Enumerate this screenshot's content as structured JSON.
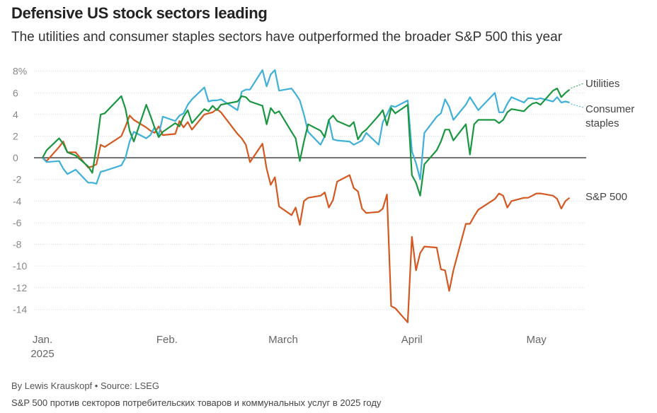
{
  "header": {
    "title": "Defensive US stock sectors leading",
    "subtitle": "The utilities and consumer staples sectors have outperformed the broader S&P 500 this year"
  },
  "footer": {
    "credit": "By Lewis Krauskopf • Source: LSEG",
    "note": "S&P 500 против секторов потребительских товаров и коммунальных услуг в 2025 году"
  },
  "colors": {
    "utilities": "#1a9641",
    "consumer_staples": "#3fb0d9",
    "sp500": "#d4581f",
    "zero_line": "#333333",
    "grid": "#d9d9d9"
  },
  "chart_data": {
    "type": "line",
    "title": "Defensive US stock sectors leading",
    "ylabel": "",
    "xlabel": "",
    "ylim": [
      -16,
      8.5
    ],
    "yticks": [
      {
        "value": 8,
        "label": "8%"
      },
      {
        "value": 6,
        "label": "6"
      },
      {
        "value": 4,
        "label": "4"
      },
      {
        "value": 2,
        "label": "2"
      },
      {
        "value": 0,
        "label": "0"
      },
      {
        "value": -2,
        "label": "-2"
      },
      {
        "value": -4,
        "label": "-4"
      },
      {
        "value": -6,
        "label": "-6"
      },
      {
        "value": -8,
        "label": "-8"
      },
      {
        "value": -10,
        "label": "-10"
      },
      {
        "value": -12,
        "label": "-12"
      },
      {
        "value": -14,
        "label": "-14"
      }
    ],
    "xticks": [
      {
        "date": "2025-01-02",
        "label": "Jan.",
        "sublabel": "2025"
      },
      {
        "date": "2025-02-01",
        "label": "Feb.",
        "sublabel": ""
      },
      {
        "date": "2025-03-01",
        "label": "March",
        "sublabel": ""
      },
      {
        "date": "2025-04-01",
        "label": "April",
        "sublabel": ""
      },
      {
        "date": "2025-05-01",
        "label": "May",
        "sublabel": ""
      }
    ],
    "x": [
      "2025-01-02",
      "2025-01-03",
      "2025-01-06",
      "2025-01-07",
      "2025-01-08",
      "2025-01-10",
      "2025-01-13",
      "2025-01-14",
      "2025-01-15",
      "2025-01-16",
      "2025-01-17",
      "2025-01-21",
      "2025-01-22",
      "2025-01-23",
      "2025-01-24",
      "2025-01-27",
      "2025-01-28",
      "2025-01-29",
      "2025-01-30",
      "2025-01-31",
      "2025-02-03",
      "2025-02-04",
      "2025-02-05",
      "2025-02-06",
      "2025-02-07",
      "2025-02-10",
      "2025-02-11",
      "2025-02-12",
      "2025-02-13",
      "2025-02-14",
      "2025-02-18",
      "2025-02-19",
      "2025-02-20",
      "2025-02-21",
      "2025-02-24",
      "2025-02-25",
      "2025-02-26",
      "2025-02-27",
      "2025-02-28",
      "2025-03-03",
      "2025-03-04",
      "2025-03-05",
      "2025-03-06",
      "2025-03-07",
      "2025-03-10",
      "2025-03-11",
      "2025-03-12",
      "2025-03-13",
      "2025-03-14",
      "2025-03-17",
      "2025-03-18",
      "2025-03-19",
      "2025-03-20",
      "2025-03-21",
      "2025-03-24",
      "2025-03-25",
      "2025-03-26",
      "2025-03-27",
      "2025-03-28",
      "2025-03-31",
      "2025-04-01",
      "2025-04-02",
      "2025-04-03",
      "2025-04-04",
      "2025-04-07",
      "2025-04-08",
      "2025-04-09",
      "2025-04-10",
      "2025-04-11",
      "2025-04-14",
      "2025-04-15",
      "2025-04-16",
      "2025-04-17",
      "2025-04-21",
      "2025-04-22",
      "2025-04-23",
      "2025-04-24",
      "2025-04-25",
      "2025-04-28",
      "2025-04-29",
      "2025-04-30",
      "2025-05-01",
      "2025-05-02",
      "2025-05-05",
      "2025-05-06",
      "2025-05-07",
      "2025-05-08",
      "2025-05-09"
    ],
    "series": [
      {
        "name": "Utilities",
        "key": "utilities",
        "values": [
          0.0,
          0.7,
          1.8,
          1.3,
          0.5,
          0.2,
          -0.8,
          -1.4,
          1.0,
          4.0,
          4.1,
          5.7,
          4.5,
          2.5,
          1.5,
          4.9,
          3.9,
          2.8,
          1.9,
          2.4,
          3.2,
          2.9,
          3.8,
          4.4,
          3.2,
          4.5,
          4.3,
          4.8,
          4.4,
          4.9,
          5.2,
          5.7,
          5.6,
          5.2,
          4.8,
          3.1,
          4.6,
          4.1,
          4.3,
          2.4,
          1.8,
          -0.3,
          1.5,
          3.1,
          2.5,
          1.9,
          3.5,
          3.9,
          3.4,
          2.9,
          3.3,
          1.7,
          2.3,
          2.6,
          3.9,
          4.4,
          3.0,
          4.6,
          4.1,
          4.9,
          -1.6,
          -2.3,
          -3.5,
          -0.6,
          0.7,
          1.5,
          2.6,
          2.6,
          1.6,
          3.1,
          0.3,
          3.1,
          3.5,
          3.5,
          3.2,
          3.5,
          4.2,
          4.5,
          4.3,
          4.7,
          5.0,
          5.1,
          4.9,
          6.2,
          6.4,
          5.6,
          6.0,
          6.3
        ]
      },
      {
        "name": "Consumer staples",
        "key": "consumer_staples",
        "values": [
          0.0,
          -0.4,
          -0.3,
          -1.0,
          -1.5,
          -1.1,
          -2.3,
          -2.3,
          -2.4,
          -1.3,
          -1.2,
          -0.7,
          0.0,
          1.5,
          2.4,
          1.8,
          2.1,
          2.8,
          2.1,
          3.8,
          3.4,
          3.9,
          4.1,
          4.9,
          5.4,
          6.5,
          5.2,
          5.3,
          5.3,
          5.4,
          4.4,
          6.1,
          6.3,
          6.3,
          8.1,
          6.6,
          7.7,
          8.1,
          6.2,
          6.4,
          5.9,
          5.3,
          4.0,
          2.4,
          1.2,
          2.0,
          3.5,
          1.7,
          1.6,
          1.5,
          1.2,
          1.4,
          1.6,
          2.3,
          1.2,
          3.3,
          4.0,
          4.8,
          4.7,
          5.3,
          0.6,
          -0.5,
          -2.0,
          2.3,
          3.8,
          4.1,
          5.4,
          4.7,
          3.5,
          4.9,
          5.6,
          5.0,
          4.4,
          6.0,
          4.2,
          4.2,
          5.0,
          5.6,
          5.1,
          5.5,
          5.5,
          5.4,
          5.5,
          5.2,
          5.6,
          5.1,
          5.2,
          5.1
        ]
      },
      {
        "name": "S&P 500",
        "key": "sp500",
        "values": [
          0.0,
          -0.3,
          1.0,
          1.5,
          0.5,
          0.5,
          -0.9,
          -0.8,
          -0.6,
          1.2,
          1.0,
          2.0,
          2.9,
          3.9,
          3.5,
          2.8,
          2.5,
          2.3,
          2.9,
          2.1,
          2.2,
          3.4,
          2.8,
          3.3,
          2.6,
          4.0,
          4.1,
          4.2,
          4.5,
          4.2,
          2.2,
          1.8,
          1.2,
          -0.4,
          1.3,
          -1.0,
          -2.5,
          -1.8,
          -4.5,
          -5.3,
          -4.6,
          -6.2,
          -4.0,
          -3.7,
          -3.5,
          -3.2,
          -4.6,
          -3.9,
          -2.2,
          -1.6,
          -2.8,
          -3.1,
          -4.7,
          -5.1,
          -5.0,
          -4.7,
          -3.4,
          -13.7,
          -13.9,
          -15.2,
          -7.3,
          -10.4,
          -8.8,
          -8.2,
          -8.3,
          -10.3,
          -10.4,
          -12.3,
          -10.4,
          -6.1,
          -6.1,
          -5.4,
          -4.8,
          -3.8,
          -3.3,
          -3.5,
          -4.6,
          -4.0,
          -3.7,
          -3.7,
          -3.5,
          -3.3,
          -3.3,
          -3.5,
          -3.8,
          -4.7,
          -4.0,
          -3.7
        ]
      }
    ],
    "legend": "inline-right",
    "grid": true
  }
}
